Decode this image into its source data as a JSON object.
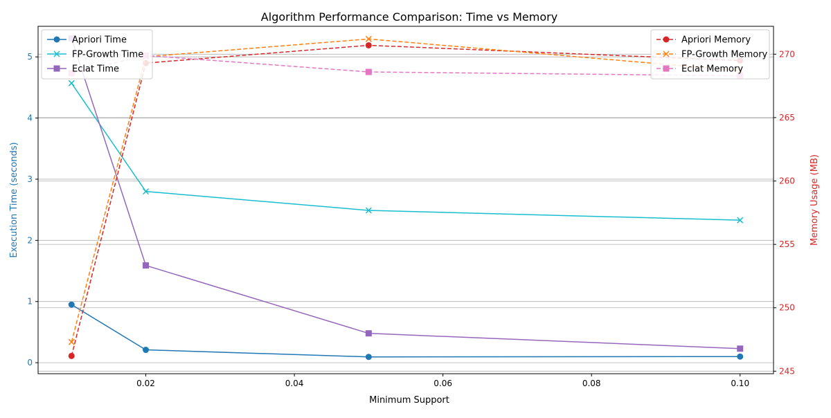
{
  "chart_data": {
    "type": "line",
    "title": "Algorithm Performance Comparison: Time vs Memory",
    "xlabel": "Minimum Support",
    "ylabel_left": "Execution Time (seconds)",
    "ylabel_right": "Memory Usage (MB)",
    "x": [
      0.01,
      0.02,
      0.05,
      0.1
    ],
    "xlim": [
      0.0055,
      0.1045
    ],
    "xticks": [
      0.02,
      0.04,
      0.06,
      0.08,
      0.1
    ],
    "xtick_labels": [
      "0.02",
      "0.04",
      "0.06",
      "0.08",
      "0.10"
    ],
    "ylim_left": [
      -0.18,
      5.5
    ],
    "yticks_left": [
      0,
      1,
      2,
      3,
      4,
      5
    ],
    "ylim_right": [
      244.8,
      272.2
    ],
    "yticks_right": [
      245,
      250,
      255,
      260,
      265,
      270
    ],
    "grid": "horizontal",
    "left_axis_color": "#1f77b4",
    "right_axis_color": "#d62728",
    "time_series": [
      {
        "name": "Apriori Time",
        "values": [
          0.95,
          0.21,
          0.095,
          0.1
        ],
        "color": "#1f77b4",
        "marker": "circle"
      },
      {
        "name": "FP-Growth Time",
        "values": [
          4.57,
          2.8,
          2.49,
          2.33
        ],
        "color": "#17becf",
        "marker": "x"
      },
      {
        "name": "Eclat Time",
        "values": [
          5.3,
          1.59,
          0.48,
          0.23
        ],
        "color": "#9467bd",
        "marker": "square"
      }
    ],
    "memory_series": [
      {
        "name": "Apriori Memory",
        "values": [
          246.2,
          269.3,
          270.7,
          269.5
        ],
        "color": "#d62728",
        "marker": "circle"
      },
      {
        "name": "FP-Growth Memory",
        "values": [
          247.3,
          269.8,
          271.2,
          268.7
        ],
        "color": "#ff7f0e",
        "marker": "x"
      },
      {
        "name": "Eclat Memory",
        "values": [
          268.5,
          269.9,
          268.6,
          268.3
        ],
        "color": "#e377c2",
        "marker": "square"
      }
    ],
    "legend_left_placement": "top-left",
    "legend_right_placement": "top-right"
  }
}
